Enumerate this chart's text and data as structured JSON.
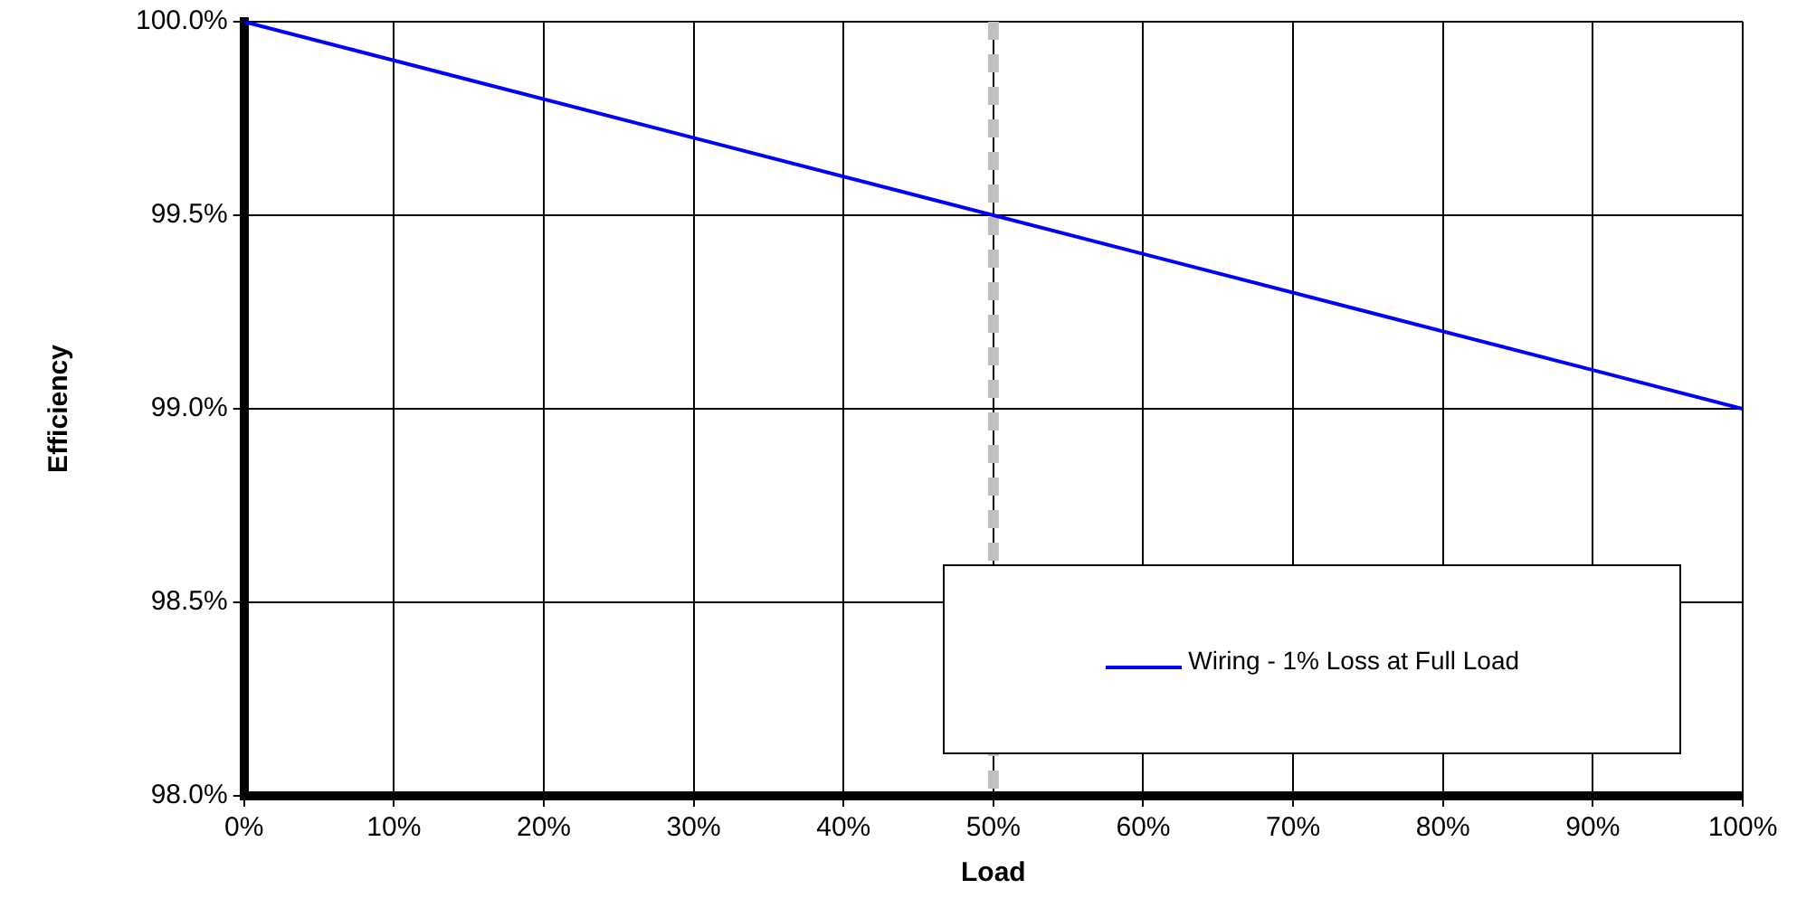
{
  "chart_data": {
    "type": "line",
    "xlabel": "Load",
    "ylabel": "Efficiency",
    "x": [
      0,
      100
    ],
    "series": [
      {
        "name": "Wiring - 1% Loss at Full Load",
        "color": "#0000ff",
        "values": [
          100,
          99
        ]
      }
    ],
    "xlim": [
      0,
      100
    ],
    "xticks": [
      {
        "value": 0,
        "label": "0%"
      },
      {
        "value": 10,
        "label": "10%"
      },
      {
        "value": 20,
        "label": "20%"
      },
      {
        "value": 30,
        "label": "30%"
      },
      {
        "value": 40,
        "label": "40%"
      },
      {
        "value": 50,
        "label": "50%"
      },
      {
        "value": 60,
        "label": "60%"
      },
      {
        "value": 70,
        "label": "70%"
      },
      {
        "value": 80,
        "label": "80%"
      },
      {
        "value": 90,
        "label": "90%"
      },
      {
        "value": 100,
        "label": "100%"
      }
    ],
    "ylim": [
      98,
      100
    ],
    "yticks": [
      {
        "value": 98,
        "label": "98.0%"
      },
      {
        "value": 98.5,
        "label": "98.5%"
      },
      {
        "value": 99,
        "label": "99.0%"
      },
      {
        "value": 99.5,
        "label": "99.5%"
      },
      {
        "value": 100,
        "label": "100.0%"
      }
    ],
    "ref_lines": [
      {
        "axis": "x",
        "value": 50,
        "color": "#c0c0c0",
        "line_style": "dashed"
      }
    ],
    "grid": true,
    "legend": "bottom right",
    "marker": "none",
    "line_style": "solid"
  }
}
